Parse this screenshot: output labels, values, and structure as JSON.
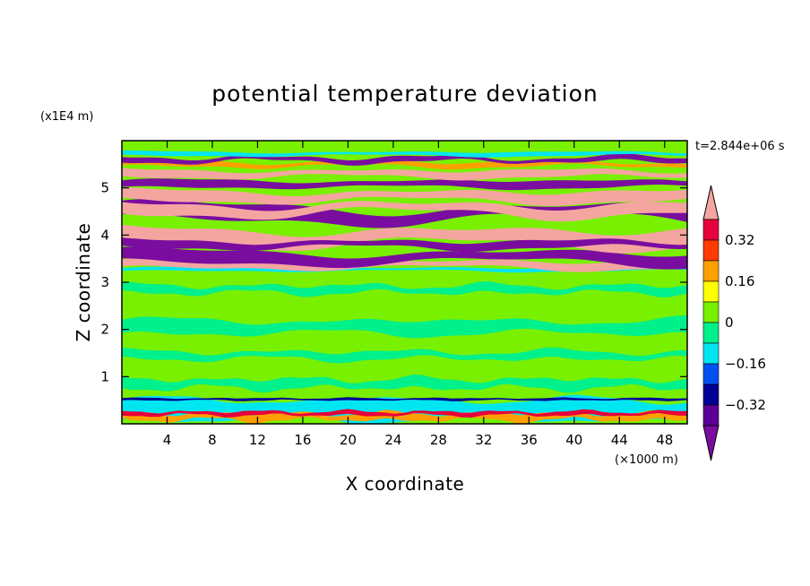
{
  "chart_data": {
    "type": "heatmap",
    "title": "potential temperature deviation",
    "time_label": "t=2.844e+06 s",
    "xlabel": "X coordinate",
    "ylabel": "Z coordinate",
    "x_unit": "(×1000 m)",
    "y_unit": "(x1E4 m)",
    "xlim": [
      0,
      50
    ],
    "ylim": [
      0,
      6
    ],
    "x_ticks": [
      "4",
      "8",
      "12",
      "16",
      "20",
      "24",
      "28",
      "32",
      "36",
      "40",
      "44",
      "48"
    ],
    "y_ticks": [
      "1",
      "2",
      "3",
      "4",
      "5"
    ],
    "colorbar": {
      "tick_labels": [
        "0.32",
        "0.16",
        "0",
        "−0.16",
        "−0.32"
      ],
      "levels": [
        -0.4,
        -0.32,
        -0.24,
        -0.16,
        -0.08,
        0,
        0.08,
        0.16,
        0.24,
        0.32,
        0.4
      ],
      "colors": [
        "#7a0da0",
        "#5a0096",
        "#000096",
        "#0050f0",
        "#00e6f0",
        "#00f08c",
        "#78f000",
        "#ffff00",
        "#ffa000",
        "#ff3c00",
        "#e6003c",
        "#f5a5a0"
      ]
    },
    "bands": [
      {
        "z_from": 0.0,
        "z_to": 0.55,
        "value": "mixed (-0.4 to 0.4)"
      },
      {
        "z_from": 0.55,
        "z_to": 3.25,
        "value": "0 to 0.08"
      },
      {
        "z_from": 3.25,
        "z_to": 5.9,
        "value": "alternating layers > 0.4 and < -0.4"
      }
    ]
  }
}
